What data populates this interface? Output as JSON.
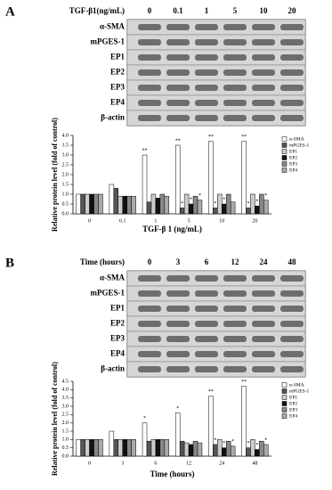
{
  "panels": [
    {
      "label": "A",
      "blot": {
        "header": "TGF-β1(ng/mL)",
        "lanes": [
          "0",
          "0.1",
          "1",
          "5",
          "10",
          "20"
        ],
        "rows": [
          "α-SMA",
          "mPGES-1",
          "EP1",
          "EP2",
          "EP3",
          "EP4",
          "β-actin"
        ]
      }
    },
    {
      "label": "B",
      "blot": {
        "header": "Time (hours)",
        "lanes": [
          "0",
          "3",
          "6",
          "12",
          "24",
          "48"
        ],
        "rows": [
          "α-SMA",
          "mPGES-1",
          "EP1",
          "EP2",
          "EP3",
          "EP4",
          "β-actin"
        ]
      }
    }
  ],
  "chart_data": [
    {
      "type": "bar",
      "y_label": "Relative protein level (fold of control)",
      "x_label": "TGF-β 1 (ng/mL)",
      "categories": [
        "0",
        "0.1",
        "1",
        "5",
        "10",
        "20"
      ],
      "ylim": [
        0,
        4
      ],
      "yticks": [
        {
          "value": 0,
          "label": "0.0"
        },
        {
          "value": 0.5,
          "label": "0.5"
        },
        {
          "value": 1,
          "label": "1.0"
        },
        {
          "value": 1.5,
          "label": "1.5"
        },
        {
          "value": 2,
          "label": "2.0"
        },
        {
          "value": 2.5,
          "label": "2.5"
        },
        {
          "value": 3,
          "label": "3.0"
        },
        {
          "value": 3.5,
          "label": "3.5"
        },
        {
          "value": 4,
          "label": "4.0"
        }
      ],
      "legend": "right",
      "series": [
        {
          "name": "α-SMA",
          "color": "#ffffff",
          "values": [
            1.0,
            1.5,
            3.0,
            3.5,
            3.7,
            3.7
          ],
          "significance": [
            null,
            null,
            "**",
            "**",
            "**",
            "**"
          ]
        },
        {
          "name": "mPGES-1",
          "color": "#555555",
          "values": [
            1.0,
            1.3,
            0.6,
            0.3,
            0.3,
            0.3
          ],
          "significance": [
            null,
            null,
            null,
            "*",
            "*",
            "*"
          ]
        },
        {
          "name": "EP1",
          "color": "#cccccc",
          "values": [
            1.0,
            0.9,
            1.0,
            1.0,
            1.0,
            1.0
          ],
          "significance": [
            null,
            null,
            null,
            null,
            null,
            null
          ]
        },
        {
          "name": "EP2",
          "color": "#111111",
          "values": [
            1.0,
            0.9,
            0.8,
            0.5,
            0.5,
            0.4
          ],
          "significance": [
            null,
            null,
            null,
            "*",
            "*",
            "*"
          ]
        },
        {
          "name": "EP3",
          "color": "#888888",
          "values": [
            1.0,
            0.9,
            1.0,
            0.9,
            1.0,
            1.0
          ],
          "significance": [
            null,
            null,
            null,
            null,
            null,
            null
          ]
        },
        {
          "name": "EP4",
          "color": "#aaaaaa",
          "values": [
            1.0,
            0.9,
            0.9,
            0.7,
            0.6,
            0.7
          ],
          "significance": [
            null,
            null,
            null,
            "*",
            null,
            "*"
          ]
        }
      ]
    },
    {
      "type": "bar",
      "y_label": "Relative protein level (fold of control)",
      "x_label": "Time (hours)",
      "categories": [
        "0",
        "3",
        "6",
        "12",
        "24",
        "48"
      ],
      "ylim": [
        0,
        4.5
      ],
      "yticks": [
        {
          "value": 0,
          "label": "0.0"
        },
        {
          "value": 0.5,
          "label": "0.5"
        },
        {
          "value": 1,
          "label": "1.0"
        },
        {
          "value": 1.5,
          "label": "1.5"
        },
        {
          "value": 2,
          "label": "2.0"
        },
        {
          "value": 2.5,
          "label": "2.5"
        },
        {
          "value": 3,
          "label": "3.0"
        },
        {
          "value": 3.5,
          "label": "3.5"
        },
        {
          "value": 4,
          "label": "4.0"
        },
        {
          "value": 4.5,
          "label": "4.5"
        }
      ],
      "legend": "right",
      "series": [
        {
          "name": "α-SMA",
          "color": "#ffffff",
          "values": [
            1.0,
            1.5,
            2.0,
            2.6,
            3.6,
            4.2
          ],
          "significance": [
            null,
            null,
            "*",
            "*",
            "**",
            "**"
          ]
        },
        {
          "name": "mPGES-1",
          "color": "#555555",
          "values": [
            1.0,
            1.0,
            0.9,
            0.9,
            0.7,
            0.5
          ],
          "significance": [
            null,
            null,
            null,
            null,
            "*",
            "*"
          ]
        },
        {
          "name": "EP1",
          "color": "#cccccc",
          "values": [
            1.0,
            1.0,
            1.0,
            0.8,
            1.0,
            1.0
          ],
          "significance": [
            null,
            null,
            null,
            null,
            null,
            null
          ]
        },
        {
          "name": "EP2",
          "color": "#111111",
          "values": [
            1.0,
            1.0,
            1.0,
            0.7,
            0.5,
            0.4
          ],
          "significance": [
            null,
            null,
            null,
            null,
            "*",
            "*"
          ]
        },
        {
          "name": "EP3",
          "color": "#888888",
          "values": [
            1.0,
            1.0,
            1.0,
            0.9,
            0.9,
            0.9
          ],
          "significance": [
            null,
            null,
            null,
            null,
            null,
            null
          ]
        },
        {
          "name": "EP4",
          "color": "#aaaaaa",
          "values": [
            1.0,
            1.0,
            1.0,
            0.8,
            0.6,
            0.7
          ],
          "significance": [
            null,
            null,
            null,
            null,
            "*",
            "*"
          ]
        }
      ]
    }
  ]
}
